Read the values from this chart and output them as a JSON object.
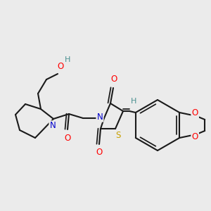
{
  "bg_color": "#ebebeb",
  "bond_color": "#1a1a1a",
  "bond_width": 1.5,
  "atom_colors": {
    "O": "#ff0000",
    "N": "#0000cc",
    "S": "#c8a000",
    "H_OH": "#4a9090",
    "C": "#1a1a1a"
  },
  "font_size_atom": 8.5,
  "fig_bg": "#ebebeb",
  "fig_width": 3.0,
  "fig_height": 3.0,
  "dpi": 100
}
